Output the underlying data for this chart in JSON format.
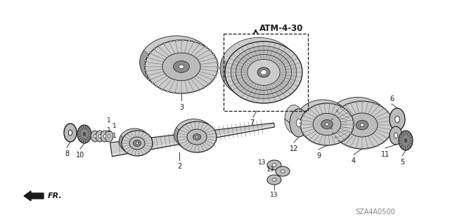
{
  "title": "ATM-4-30",
  "diagram_code": "SZA4A0500",
  "background_color": "#ffffff",
  "line_color": "#1a1a1a",
  "gray_dark": "#555555",
  "gray_mid": "#888888",
  "gray_light": "#bbbbbb",
  "gray_fill": "#cccccc",
  "gray_hatch": "#999999"
}
